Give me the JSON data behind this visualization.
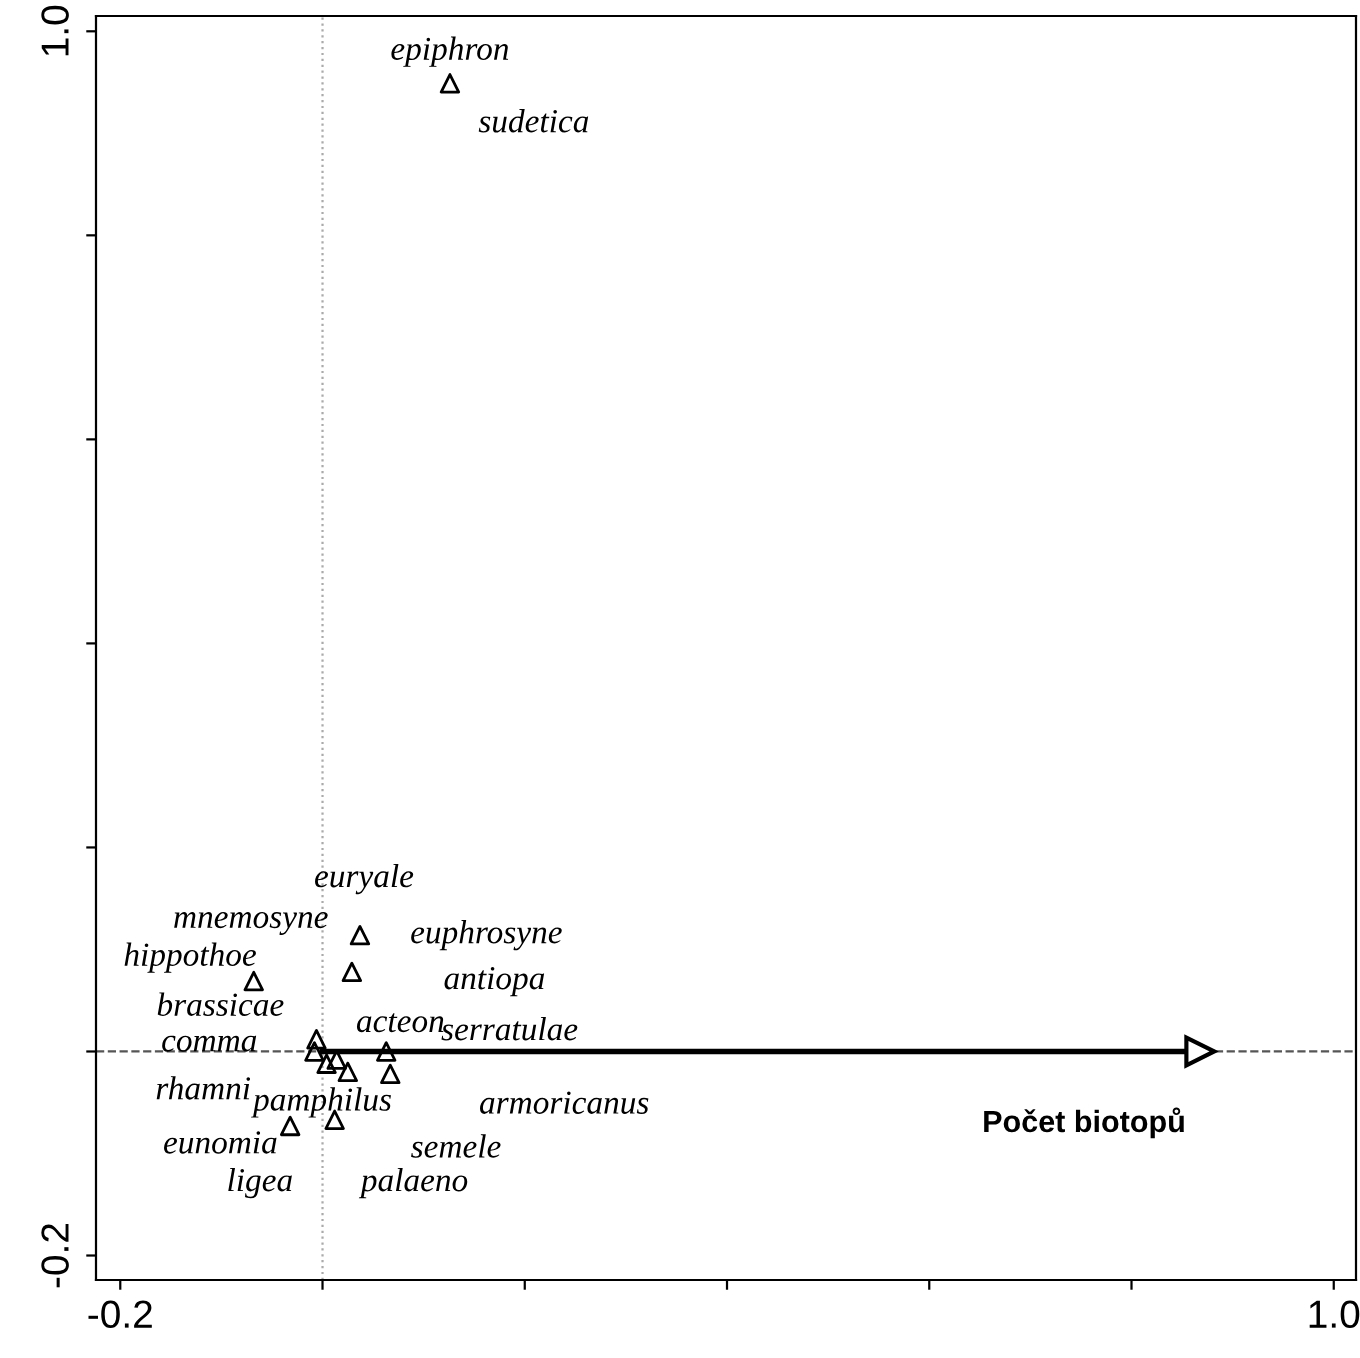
{
  "chart_data": {
    "type": "scatter",
    "series": [
      {
        "color": "#000000",
        "marker": "triangle",
        "x": [
          0.126,
          0.037,
          0.029,
          -0.068,
          -0.006,
          -0.008,
          0.004,
          0.014,
          0.025,
          0.063,
          0.067,
          -0.032,
          0.012
        ],
        "values": [
          0.949,
          0.114,
          0.078,
          0.069,
          0.012,
          0.0,
          -0.012,
          -0.008,
          -0.02,
          0.0,
          -0.022,
          -0.073,
          -0.067
        ]
      },
      {
        "type": "line",
        "name": "Počet biotopů",
        "color": "#000000",
        "x": [
          0.0,
          0.868
        ],
        "values": [
          0.0,
          0.0
        ]
      }
    ],
    "xlim": [
      -0.224,
      1.022
    ],
    "ylim": [
      -0.224,
      1.015
    ],
    "xticks": [
      {
        "value": -0.2,
        "label": "-0.2"
      },
      {
        "value": 0.0,
        "label": null
      },
      {
        "value": 0.2,
        "label": null
      },
      {
        "value": 0.4,
        "label": null
      },
      {
        "value": 0.6,
        "label": null
      },
      {
        "value": 0.8,
        "label": null
      },
      {
        "value": 1.0,
        "label": "1.0"
      }
    ],
    "yticks": [
      {
        "value": -0.2,
        "label": "-0.2"
      },
      {
        "value": 0.0,
        "label": null
      },
      {
        "value": 0.2,
        "label": null
      },
      {
        "value": 0.4,
        "label": null
      },
      {
        "value": 0.6,
        "label": null
      },
      {
        "value": 0.8,
        "label": null
      },
      {
        "value": 1.0,
        "label": "1.0"
      }
    ],
    "ref_lines": [
      {
        "axis": "x",
        "value": 0.0,
        "color": "#aaaaaa",
        "line_style": "dotted"
      },
      {
        "axis": "y",
        "value": 0.0,
        "color": "#555555",
        "line_style": "dashed"
      }
    ],
    "grid": false,
    "legend": false,
    "annotations": [
      "epiphron",
      "sudetica",
      "euryale",
      "mnemosyne",
      "euphrosyne",
      "hippothoe",
      "antiopa",
      "brassicae",
      "acteon",
      "comma",
      "serratulae",
      "rhamni",
      "pamphilus",
      "armoricanus",
      "eunomia",
      "semele",
      "ligea",
      "palaeno"
    ]
  }
}
